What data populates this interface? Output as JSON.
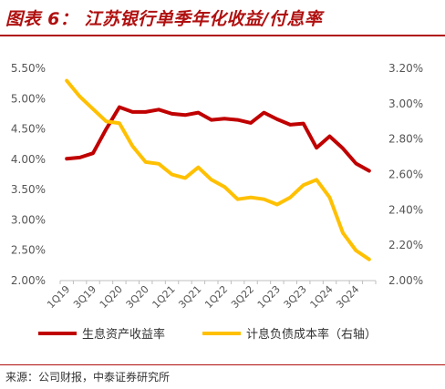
{
  "page": {
    "title": "图表 6：  江苏银行单季年化收益/付息率",
    "source": "来源：公司财报，中泰证券研究所"
  },
  "colors": {
    "title": "#b01010",
    "series_left": "#c00000",
    "series_right": "#ffc000"
  },
  "chart_data": {
    "type": "line",
    "title": "江苏银行单季年化收益/付息率",
    "x": [
      "1Q19",
      "2Q19",
      "3Q19",
      "4Q19",
      "1Q20",
      "2Q20",
      "3Q20",
      "4Q20",
      "1Q21",
      "2Q21",
      "3Q21",
      "4Q21",
      "1Q22",
      "2Q22",
      "3Q22",
      "4Q22",
      "1Q23",
      "2Q23",
      "3Q23",
      "4Q23",
      "1Q24",
      "2Q24",
      "3Q24",
      "4Q24"
    ],
    "x_tick_labels": [
      "1Q19",
      "3Q19",
      "1Q20",
      "3Q20",
      "1Q21",
      "3Q21",
      "1Q22",
      "3Q22",
      "1Q23",
      "3Q23",
      "1Q24",
      "3Q24"
    ],
    "y_left": {
      "ylim": [
        2.0,
        5.5
      ],
      "ticks": [
        "2.00%",
        "2.50%",
        "3.00%",
        "3.50%",
        "4.00%",
        "4.50%",
        "5.00%",
        "5.50%"
      ]
    },
    "y_right": {
      "ylim": [
        2.0,
        3.2
      ],
      "ticks": [
        "2.00%",
        "2.20%",
        "2.40%",
        "2.60%",
        "2.80%",
        "3.00%",
        "3.20%"
      ]
    },
    "grid": false,
    "legend_position": "bottom",
    "series": [
      {
        "name": "生息资产收益率",
        "axis": "left",
        "values": [
          4.01,
          4.03,
          4.1,
          4.5,
          4.86,
          4.78,
          4.78,
          4.82,
          4.75,
          4.73,
          4.77,
          4.65,
          4.67,
          4.65,
          4.6,
          4.77,
          4.66,
          4.57,
          4.59,
          4.19,
          4.38,
          4.18,
          3.93,
          3.81
        ]
      },
      {
        "name": "计息负债成本率（右轴）",
        "axis": "right",
        "values": [
          3.13,
          3.04,
          2.97,
          2.9,
          2.89,
          2.76,
          2.67,
          2.66,
          2.6,
          2.58,
          2.64,
          2.57,
          2.53,
          2.46,
          2.47,
          2.46,
          2.43,
          2.47,
          2.54,
          2.57,
          2.47,
          2.27,
          2.17,
          2.12
        ]
      }
    ]
  }
}
